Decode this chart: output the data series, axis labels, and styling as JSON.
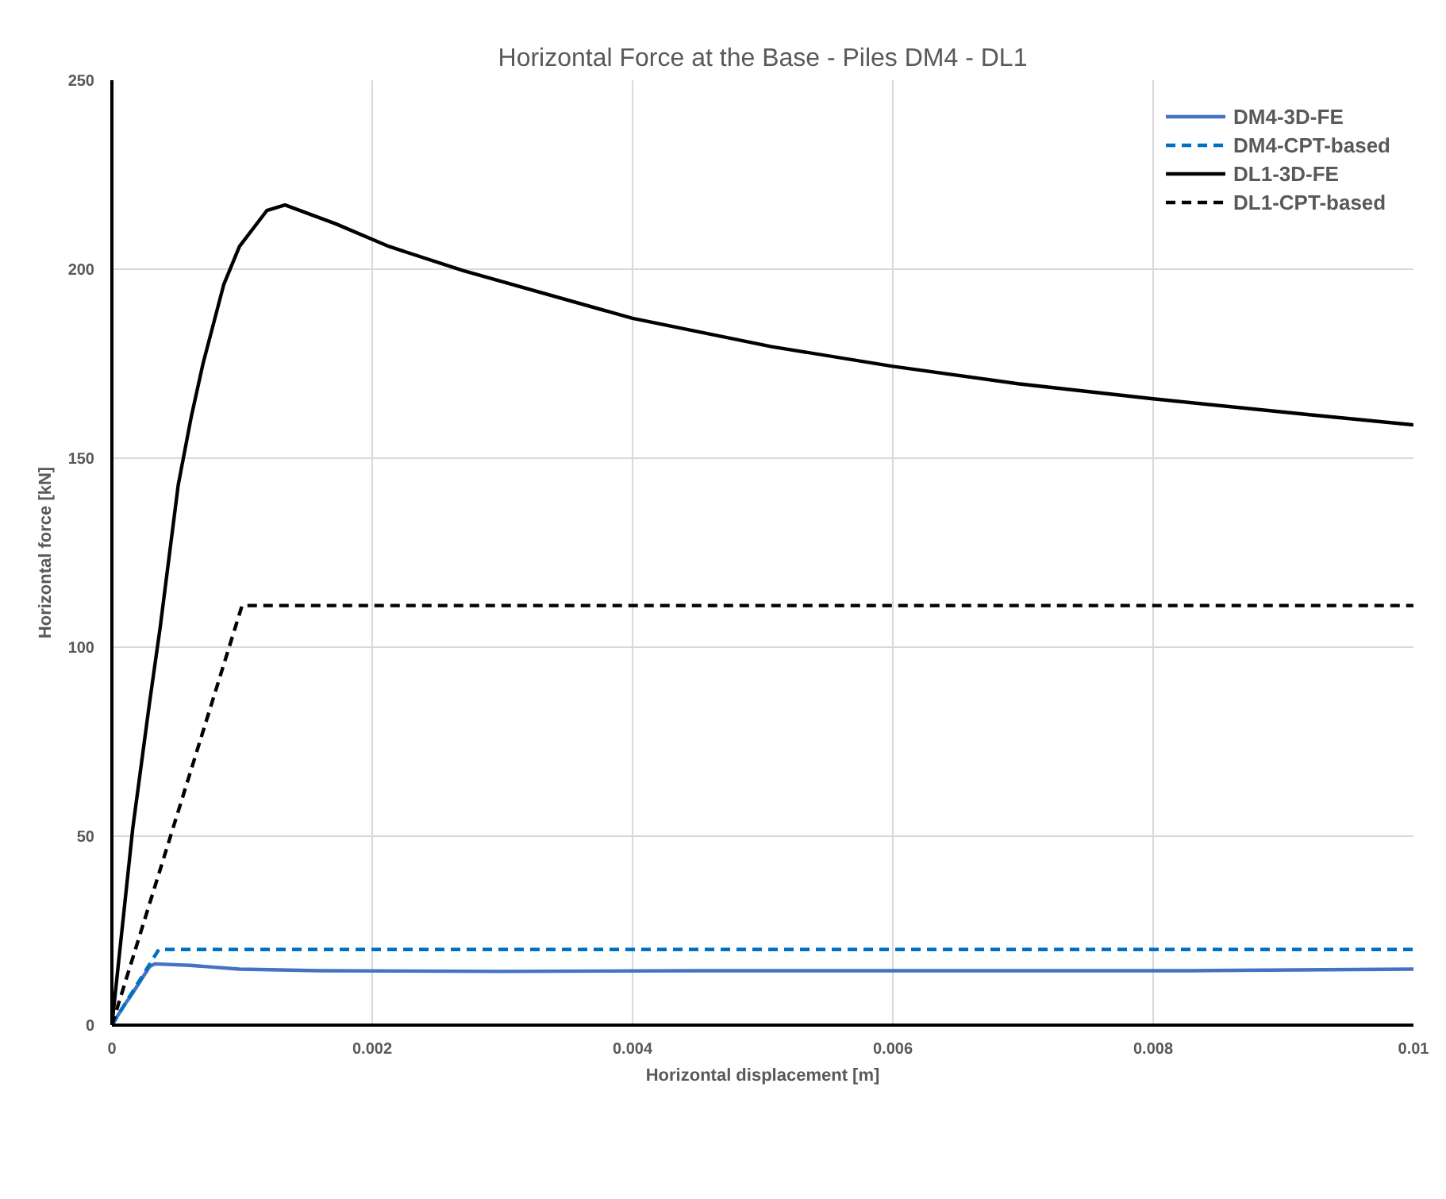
{
  "chart_data": {
    "type": "line",
    "title": "Horizontal Force at the Base - Piles DM4 - DL1",
    "xlabel": "Horizontal displacement [m]",
    "ylabel": "Horizontal force [kN]",
    "xlim": [
      0,
      0.01
    ],
    "ylim": [
      0,
      250
    ],
    "xticks": [
      0,
      0.002,
      0.004,
      0.006,
      0.008,
      0.01
    ],
    "yticks": [
      0,
      50,
      100,
      150,
      200,
      250
    ],
    "grid": true,
    "legend": "top right",
    "series": [
      {
        "name": "DM4-3D-FE",
        "color": "#4472c4",
        "line_style": "solid",
        "x": [
          0,
          8e-05,
          0.00016,
          0.00029,
          0.00033,
          0.0006,
          0.00098,
          0.0016,
          0.003,
          0.0045,
          0.006,
          0.0083,
          0.01
        ],
        "values": [
          0,
          4.5,
          8.5,
          15.5,
          16.2,
          15.8,
          14.8,
          14.4,
          14.2,
          14.4,
          14.4,
          14.4,
          14.8
        ]
      },
      {
        "name": "DM4-CPT-based",
        "color": "#0070c0",
        "line_style": "dashed",
        "x": [
          0,
          0.00036,
          0.01
        ],
        "values": [
          0,
          20,
          20
        ]
      },
      {
        "name": "DL1-3D-FE",
        "color": "#000000",
        "line_style": "solid",
        "x": [
          0,
          0.00016,
          0.00029,
          0.00037,
          0.00051,
          0.00061,
          0.0007,
          0.00086,
          0.00098,
          0.00119,
          0.00133,
          0.00172,
          0.00213,
          0.0027,
          0.004,
          0.00507,
          0.006,
          0.00696,
          0.008,
          0.00923,
          0.01
        ],
        "values": [
          0,
          52,
          85.5,
          105,
          143,
          161,
          175,
          196,
          206,
          215.5,
          217,
          212,
          206,
          199.6,
          187,
          179.5,
          174.3,
          169.7,
          165.7,
          161.4,
          158.8
        ]
      },
      {
        "name": "DL1-CPT-based",
        "color": "#000000",
        "line_style": "dashed",
        "x": [
          0,
          0.001,
          0.01
        ],
        "values": [
          0,
          111,
          111
        ]
      }
    ]
  }
}
